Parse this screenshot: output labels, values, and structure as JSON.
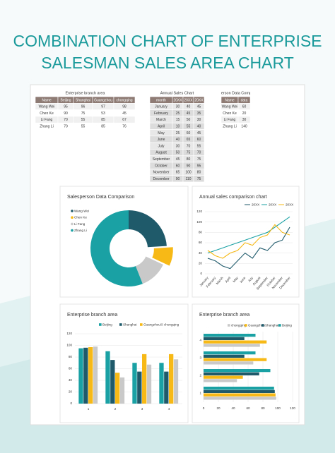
{
  "title": [
    "COMBINATION CHART OF ENTERPRISE",
    "SALESMAN SALES AREA CHART"
  ],
  "tables": [
    {
      "title": "Enterprise branch area",
      "header": [
        "Name",
        "Beijing",
        "Shanghai",
        "Guangzhou",
        "chongqing"
      ],
      "rows": [
        [
          "Wang Wei",
          95,
          96,
          97,
          98
        ],
        [
          "Chen Ke",
          90,
          75,
          53,
          45
        ],
        [
          "Li Fang",
          70,
          55,
          85,
          67
        ],
        [
          "Zhang Li",
          70,
          55,
          85,
          76
        ]
      ]
    },
    {
      "title": "Annual Sales Chart",
      "header": [
        "month",
        "20XX",
        "20XX",
        "20XX"
      ],
      "rows": [
        [
          "January",
          30,
          40,
          45
        ],
        [
          "February",
          25,
          45,
          35
        ],
        [
          "March",
          15,
          50,
          30
        ],
        [
          "April",
          10,
          55,
          40
        ],
        [
          "May",
          25,
          60,
          45
        ],
        [
          "June",
          40,
          65,
          60
        ],
        [
          "July",
          30,
          70,
          55
        ],
        [
          "August",
          50,
          75,
          70
        ],
        [
          "September",
          45,
          80,
          75
        ],
        [
          "October",
          60,
          90,
          95
        ],
        [
          "November",
          65,
          100,
          80
        ],
        [
          "December",
          90,
          110,
          75
        ]
      ]
    },
    {
      "title": "Salesperson Data Comparison",
      "header": [
        "Name",
        "data"
      ],
      "rows": [
        [
          "Wang Wei",
          60
        ],
        [
          "Chen Ke",
          20
        ],
        [
          "Li Fang",
          30
        ],
        [
          "Zhang Li",
          140
        ]
      ]
    }
  ],
  "chart_data": [
    {
      "type": "pie",
      "title": "Salesperson Data Comparison",
      "categories": [
        "Wang Wei",
        "Chen Ke",
        "Li Fang",
        "Zhang Li"
      ],
      "values": [
        60,
        20,
        30,
        140
      ],
      "colors": [
        "#1f5a6b",
        "#f6b916",
        "#c9c9c9",
        "#1aa1a4"
      ],
      "donut": true
    },
    {
      "type": "line",
      "title": "Annual sales comparison chart",
      "categories": [
        "January",
        "February",
        "March",
        "April",
        "May",
        "June",
        "July",
        "August",
        "September",
        "October",
        "November",
        "December"
      ],
      "series": [
        {
          "name": "20XX",
          "color": "#1f5a6b",
          "values": [
            30,
            25,
            15,
            10,
            25,
            40,
            30,
            50,
            45,
            60,
            65,
            90
          ]
        },
        {
          "name": "20XX",
          "color": "#1aa1a4",
          "values": [
            40,
            45,
            50,
            55,
            60,
            65,
            70,
            75,
            80,
            90,
            100,
            110
          ]
        },
        {
          "name": "20XX",
          "color": "#f6b916",
          "values": [
            45,
            35,
            30,
            40,
            45,
            60,
            55,
            70,
            75,
            95,
            80,
            75
          ]
        }
      ],
      "ylim": [
        0,
        120
      ],
      "yticks": [
        0,
        20,
        40,
        60,
        80,
        100,
        120
      ],
      "grid": true
    },
    {
      "type": "bar",
      "title": "Enterprise branch area",
      "categories": [
        "1",
        "2",
        "3",
        "4"
      ],
      "series": [
        {
          "name": "Beijing",
          "color": "#1aa1a4",
          "values": [
            95,
            90,
            70,
            70
          ]
        },
        {
          "name": "Shanghai",
          "color": "#1f5a6b",
          "values": [
            96,
            75,
            55,
            55
          ]
        },
        {
          "name": "Guangzhou",
          "color": "#f6b916",
          "values": [
            97,
            53,
            85,
            85
          ]
        },
        {
          "name": "chongqing",
          "color": "#c9c9c9",
          "values": [
            98,
            45,
            67,
            76
          ]
        }
      ],
      "ylim": [
        0,
        120
      ],
      "yticks": [
        0,
        20,
        40,
        60,
        80,
        100,
        120
      ],
      "grid": true
    },
    {
      "type": "hbar",
      "title": "Enterprise branch area",
      "categories": [
        "1",
        "2",
        "3",
        "4"
      ],
      "series": [
        {
          "name": "chongqing",
          "color": "#c9c9c9",
          "values": [
            98,
            45,
            67,
            76
          ]
        },
        {
          "name": "Guangzhou",
          "color": "#f6b916",
          "values": [
            97,
            53,
            85,
            85
          ]
        },
        {
          "name": "Shanghai",
          "color": "#1f5a6b",
          "values": [
            96,
            75,
            55,
            55
          ]
        },
        {
          "name": "Beijing",
          "color": "#1aa1a4",
          "values": [
            95,
            90,
            70,
            70
          ]
        }
      ],
      "xlim": [
        0,
        120
      ],
      "xticks": [
        0,
        20,
        40,
        60,
        80,
        100,
        120
      ],
      "grid": true
    }
  ]
}
